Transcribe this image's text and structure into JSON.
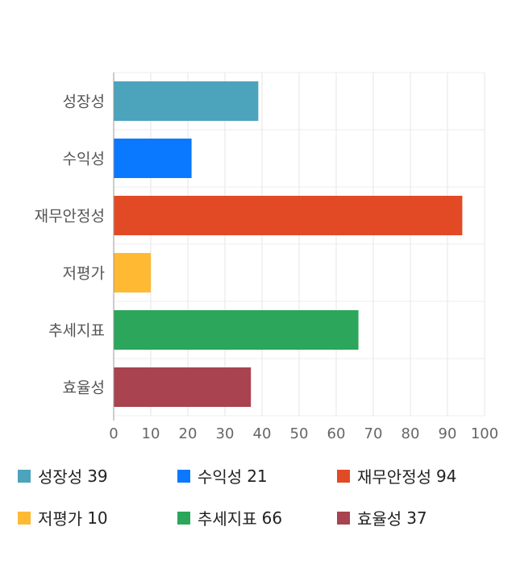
{
  "chart_data": {
    "type": "bar",
    "orientation": "horizontal",
    "categories": [
      "성장성",
      "수익성",
      "재무안정성",
      "저평가",
      "추세지표",
      "효율성"
    ],
    "values": [
      39,
      21,
      94,
      10,
      66,
      37
    ],
    "colors": [
      "#4BA3BC",
      "#0A78FF",
      "#E24A25",
      "#FFB933",
      "#2BA65A",
      "#A8434F"
    ],
    "xlim": [
      0,
      100
    ],
    "xticks": [
      0,
      10,
      20,
      30,
      40,
      50,
      60,
      70,
      80,
      90,
      100
    ],
    "grid": true,
    "legend_position": "bottom"
  }
}
